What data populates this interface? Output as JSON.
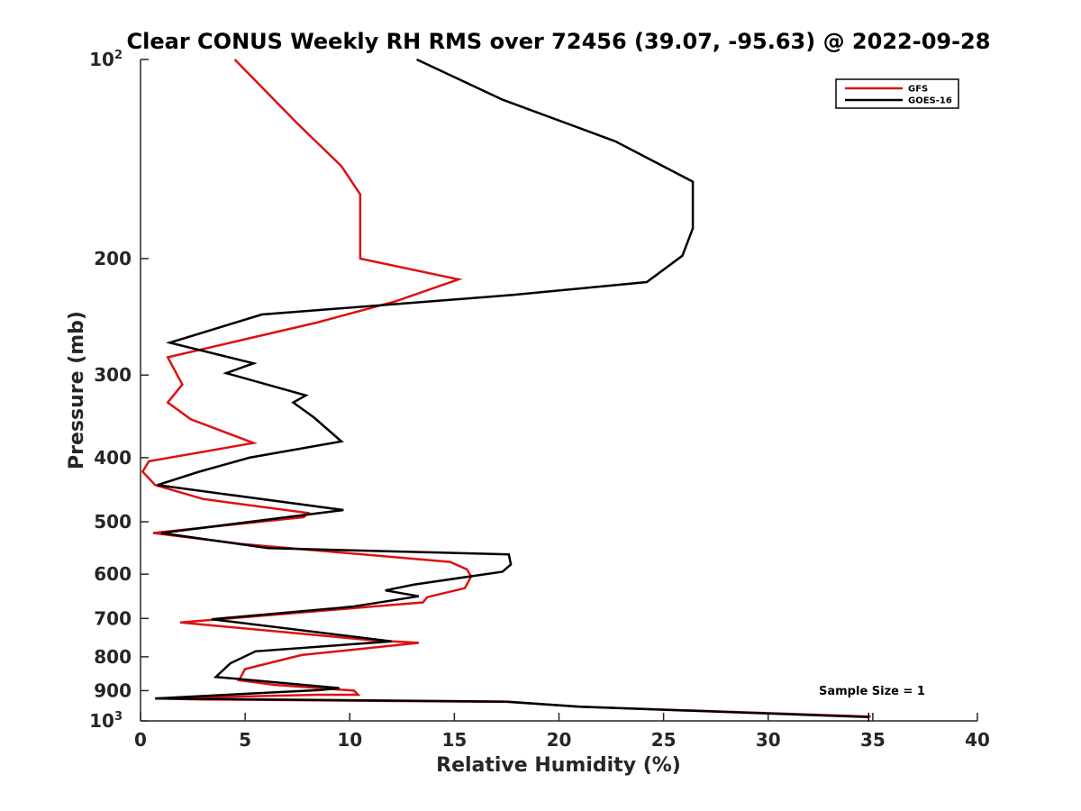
{
  "chart_data": {
    "type": "line",
    "title": "Clear CONUS Weekly RH RMS over 72456 (39.07, -95.63) @ 2022-09-28",
    "xlabel": "Relative Humidity (%)",
    "ylabel": "Pressure (mb)",
    "xlim": [
      0,
      40
    ],
    "ylim": [
      100,
      1000
    ],
    "yscale": "log",
    "y_reversed": true,
    "grid": false,
    "x_ticks": [
      0,
      5,
      10,
      15,
      20,
      25,
      30,
      35,
      40
    ],
    "y_ticks": [
      {
        "value": 100,
        "label": "10",
        "exponent": "2"
      },
      {
        "value": 200,
        "label": "200"
      },
      {
        "value": 300,
        "label": "300"
      },
      {
        "value": 400,
        "label": "400"
      },
      {
        "value": 500,
        "label": "500"
      },
      {
        "value": 600,
        "label": "600"
      },
      {
        "value": 700,
        "label": "700"
      },
      {
        "value": 800,
        "label": "800"
      },
      {
        "value": 900,
        "label": "900"
      },
      {
        "value": 1000,
        "label": "10",
        "exponent": "3"
      }
    ],
    "legend_position": "top-right",
    "series": [
      {
        "name": "GFS",
        "color": "#dd1111",
        "points": [
          [
            4.5,
            100
          ],
          [
            7.5,
            125
          ],
          [
            9.6,
            145
          ],
          [
            10.5,
            160
          ],
          [
            10.5,
            200
          ],
          [
            15.2,
            215
          ],
          [
            12.2,
            232
          ],
          [
            8.4,
            250
          ],
          [
            1.3,
            282
          ],
          [
            2.0,
            310
          ],
          [
            1.3,
            330
          ],
          [
            2.4,
            350
          ],
          [
            5.4,
            380
          ],
          [
            0.4,
            405
          ],
          [
            0.1,
            420
          ],
          [
            0.7,
            440
          ],
          [
            3.0,
            462
          ],
          [
            8.0,
            485
          ],
          [
            7.8,
            492
          ],
          [
            0.6,
            520
          ],
          [
            4.8,
            540
          ],
          [
            14.8,
            575
          ],
          [
            15.6,
            590
          ],
          [
            15.8,
            605
          ],
          [
            15.5,
            630
          ],
          [
            13.7,
            650
          ],
          [
            13.5,
            662
          ],
          [
            11.0,
            672
          ],
          [
            1.9,
            710
          ],
          [
            11.0,
            755
          ],
          [
            13.3,
            762
          ],
          [
            7.7,
            795
          ],
          [
            5.0,
            835
          ],
          [
            4.7,
            868
          ],
          [
            6.4,
            882
          ],
          [
            10.2,
            900
          ],
          [
            10.4,
            913
          ],
          [
            8.5,
            913
          ],
          [
            0.7,
            925
          ],
          [
            3.0,
            928
          ],
          [
            17.5,
            936
          ],
          [
            21.0,
            952
          ],
          [
            34.9,
            985
          ]
        ]
      },
      {
        "name": "GOES-16",
        "color": "#000000",
        "points": [
          [
            13.2,
            100
          ],
          [
            17.3,
            115
          ],
          [
            22.7,
            133
          ],
          [
            26.4,
            153
          ],
          [
            26.4,
            180
          ],
          [
            25.9,
            198
          ],
          [
            24.2,
            217
          ],
          [
            17.8,
            227
          ],
          [
            5.8,
            243
          ],
          [
            1.4,
            268
          ],
          [
            5.4,
            288
          ],
          [
            4.1,
            298
          ],
          [
            7.9,
            322
          ],
          [
            7.3,
            330
          ],
          [
            8.3,
            348
          ],
          [
            9.6,
            378
          ],
          [
            5.2,
            400
          ],
          [
            2.8,
            420
          ],
          [
            0.8,
            440
          ],
          [
            9.7,
            480
          ],
          [
            1.0,
            520
          ],
          [
            6.1,
            548
          ],
          [
            17.6,
            560
          ],
          [
            17.7,
            580
          ],
          [
            17.3,
            595
          ],
          [
            13.1,
            622
          ],
          [
            11.7,
            635
          ],
          [
            13.3,
            648
          ],
          [
            10.1,
            672
          ],
          [
            3.4,
            702
          ],
          [
            12.0,
            758
          ],
          [
            5.5,
            785
          ],
          [
            4.3,
            818
          ],
          [
            3.6,
            858
          ],
          [
            9.5,
            892
          ],
          [
            8.6,
            898
          ],
          [
            0.7,
            925
          ],
          [
            17.5,
            935
          ],
          [
            21.0,
            952
          ],
          [
            34.8,
            987
          ]
        ]
      }
    ],
    "annotations": [
      {
        "text": "Sample Size = 1",
        "x": 36,
        "y": 890
      }
    ]
  }
}
